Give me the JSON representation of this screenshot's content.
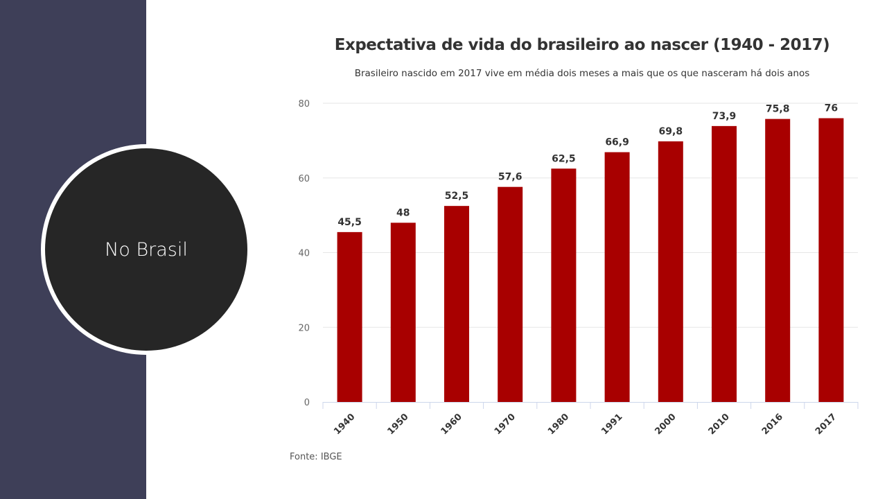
{
  "slide": {
    "circle_label": "No Brasil",
    "source": "Fonte: IBGE"
  },
  "colors": {
    "bar": "#a80000",
    "sidebar": "#3e3f58",
    "circle": "#262626"
  },
  "chart_data": {
    "type": "bar",
    "title": "Expectativa de vida do brasileiro ao nascer (1940 - 2017)",
    "subtitle": "Brasileiro nascido em 2017 vive em média dois meses a mais que os que nasceram há dois anos",
    "categories": [
      "1940",
      "1950",
      "1960",
      "1970",
      "1980",
      "1991",
      "2000",
      "2010",
      "2016",
      "2017"
    ],
    "values": [
      45.5,
      48,
      52.5,
      57.6,
      62.5,
      66.9,
      69.8,
      73.9,
      75.8,
      76
    ],
    "data_labels": [
      "45,5",
      "48",
      "52,5",
      "57,6",
      "62,5",
      "66,9",
      "69,8",
      "73,9",
      "75,8",
      "76"
    ],
    "yticks": [
      0,
      20,
      40,
      60,
      80
    ],
    "ylim": [
      0,
      80
    ],
    "grid": true,
    "xlabel": "",
    "ylabel": ""
  }
}
